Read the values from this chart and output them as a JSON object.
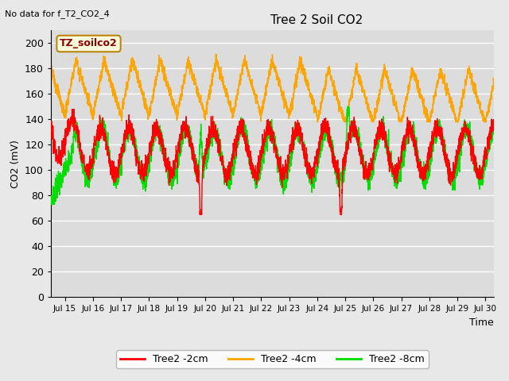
{
  "title": "Tree 2 Soil CO2",
  "subtitle": "No data for f_T2_CO2_4",
  "ylabel": "CO2 (mV)",
  "xlabel": "Time",
  "legend_box_label": "TZ_soilco2",
  "ylim": [
    0,
    210
  ],
  "yticks": [
    0,
    20,
    40,
    60,
    80,
    100,
    120,
    140,
    160,
    180,
    200
  ],
  "xlim_days": [
    14.5,
    30.3
  ],
  "xtick_days": [
    15,
    16,
    17,
    18,
    19,
    20,
    21,
    22,
    23,
    24,
    25,
    26,
    27,
    28,
    29,
    30
  ],
  "xtick_labels": [
    "Jul 15",
    "Jul 16",
    "Jul 17",
    "Jul 18",
    "Jul 19",
    "Jul 20",
    "Jul 21",
    "Jul 22",
    "Jul 23",
    "Jul 24",
    "Jul 25",
    "Jul 26",
    "Jul 27",
    "Jul 28",
    "Jul 29",
    "Jul 30"
  ],
  "series": {
    "red": {
      "label": "Tree2 -2cm",
      "color": "#ff0000"
    },
    "orange": {
      "label": "Tree2 -4cm",
      "color": "#ffa500"
    },
    "green": {
      "label": "Tree2 -8cm",
      "color": "#00dd00"
    }
  },
  "plot_bg": "#dcdcdc",
  "fig_bg": "#e8e8e8",
  "grid_color": "#ffffff",
  "lw": 1.0
}
